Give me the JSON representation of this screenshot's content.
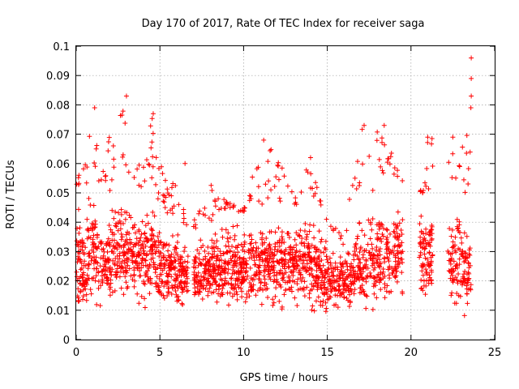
{
  "chart_data": {
    "type": "scatter",
    "title": "Day 170 of 2017, Rate Of TEC Index for receiver saga",
    "xlabel": "GPS time / hours",
    "ylabel": "ROTI / TECUs",
    "xlim": [
      0,
      25
    ],
    "ylim": [
      0,
      0.1
    ],
    "xticks": [
      0,
      5,
      10,
      15,
      20,
      25
    ],
    "xtick_labels": [
      "0",
      "5",
      "10",
      "15",
      "20",
      "25"
    ],
    "yticks": [
      0,
      0.01,
      0.02,
      0.03,
      0.04,
      0.05,
      0.06,
      0.07,
      0.08,
      0.09,
      0.1
    ],
    "ytick_labels": [
      "0",
      "0.01",
      "0.02",
      "0.03",
      "0.04",
      "0.05",
      "0.06",
      "0.07",
      "0.08",
      "0.09",
      "0.1"
    ],
    "grid": true,
    "marker": "+",
    "color": "#ff0000",
    "density_envelope": [
      {
        "x": 0.0,
        "low": 0.01,
        "high": 0.052,
        "spike": 0.055
      },
      {
        "x": 0.5,
        "low": 0.009,
        "high": 0.05,
        "spike": 0.06
      },
      {
        "x": 1.0,
        "low": 0.012,
        "high": 0.058,
        "spike": 0.079
      },
      {
        "x": 1.5,
        "low": 0.013,
        "high": 0.045,
        "spike": 0.055
      },
      {
        "x": 2.0,
        "low": 0.011,
        "high": 0.05,
        "spike": 0.07
      },
      {
        "x": 2.5,
        "low": 0.012,
        "high": 0.06,
        "spike": 0.074
      },
      {
        "x": 3.0,
        "low": 0.012,
        "high": 0.055,
        "spike": 0.083
      },
      {
        "x": 3.5,
        "low": 0.013,
        "high": 0.048,
        "spike": 0.055
      },
      {
        "x": 4.0,
        "low": 0.013,
        "high": 0.052,
        "spike": 0.068
      },
      {
        "x": 4.5,
        "low": 0.012,
        "high": 0.055,
        "spike": 0.077
      },
      {
        "x": 5.0,
        "low": 0.01,
        "high": 0.045,
        "spike": 0.065
      },
      {
        "x": 5.5,
        "low": 0.012,
        "high": 0.042,
        "spike": 0.05
      },
      {
        "x": 6.0,
        "low": 0.012,
        "high": 0.04,
        "spike": 0.06
      },
      {
        "x": 6.4,
        "low": 0.013,
        "high": 0.038,
        "spike": 0.045
      },
      {
        "x": 7.0,
        "low": 0.014,
        "high": 0.036,
        "spike": 0.04
      },
      {
        "x": 8.0,
        "low": 0.013,
        "high": 0.04,
        "spike": 0.053
      },
      {
        "x": 9.0,
        "low": 0.01,
        "high": 0.045,
        "spike": 0.047
      },
      {
        "x": 10.0,
        "low": 0.012,
        "high": 0.043,
        "spike": 0.045
      },
      {
        "x": 11.0,
        "low": 0.012,
        "high": 0.045,
        "spike": 0.068
      },
      {
        "x": 12.0,
        "low": 0.012,
        "high": 0.047,
        "spike": 0.063
      },
      {
        "x": 13.0,
        "low": 0.013,
        "high": 0.045,
        "spike": 0.05
      },
      {
        "x": 14.0,
        "low": 0.01,
        "high": 0.05,
        "spike": 0.062
      },
      {
        "x": 15.0,
        "low": 0.008,
        "high": 0.04,
        "spike": 0.04
      },
      {
        "x": 16.0,
        "low": 0.01,
        "high": 0.032,
        "spike": 0.036
      },
      {
        "x": 17.0,
        "low": 0.008,
        "high": 0.05,
        "spike": 0.073
      },
      {
        "x": 18.0,
        "low": 0.01,
        "high": 0.05,
        "spike": 0.073
      },
      {
        "x": 19.0,
        "low": 0.014,
        "high": 0.055,
        "spike": 0.066
      },
      {
        "x": 20.7,
        "low": 0.015,
        "high": 0.05,
        "spike": 0.05
      },
      {
        "x": 21.0,
        "low": 0.016,
        "high": 0.05,
        "spike": 0.069
      },
      {
        "x": 22.5,
        "low": 0.01,
        "high": 0.05,
        "spike": 0.069
      },
      {
        "x": 23.0,
        "low": 0.008,
        "high": 0.055,
        "spike": 0.063
      },
      {
        "x": 23.6,
        "low": 0.009,
        "high": 0.04,
        "spike": 0.096
      }
    ],
    "data_gaps": [
      [
        6.7,
        7.0
      ],
      [
        19.5,
        20.5
      ],
      [
        21.3,
        22.2
      ]
    ],
    "notable_points": [
      {
        "x": 23.6,
        "y": 0.096
      },
      {
        "x": 23.6,
        "y": 0.089
      },
      {
        "x": 23.6,
        "y": 0.083
      },
      {
        "x": 3.0,
        "y": 0.083
      },
      {
        "x": 1.1,
        "y": 0.079
      },
      {
        "x": 4.6,
        "y": 0.077
      },
      {
        "x": 17.2,
        "y": 0.073
      },
      {
        "x": 18.4,
        "y": 0.073
      },
      {
        "x": 21.0,
        "y": 0.069
      },
      {
        "x": 22.5,
        "y": 0.069
      },
      {
        "x": 11.2,
        "y": 0.068
      },
      {
        "x": 14.0,
        "y": 0.062
      },
      {
        "x": 6.5,
        "y": 0.06
      }
    ]
  }
}
